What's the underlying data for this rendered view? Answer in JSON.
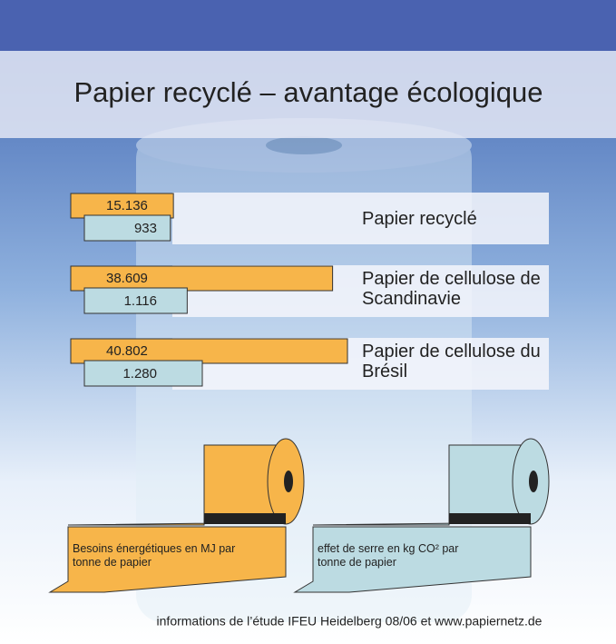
{
  "chart_data": {
    "type": "bar",
    "title": "Papier recyclé – avantage écologique",
    "categories": [
      "Papier recyclé",
      "Papier de cellulose de Scandinavie",
      "Papier de cellulose du Brésil"
    ],
    "series": [
      {
        "name": "Besoins énergétiques en MJ par tonne de papier",
        "color": "#f7b54a",
        "values": [
          15136,
          38609,
          40802
        ],
        "value_labels": [
          "15.136",
          "38.609",
          "40.802"
        ]
      },
      {
        "name": "effet de serre en kg CO² par tonne de papier",
        "color": "#bcdbe2",
        "values": [
          933,
          1116,
          1280
        ],
        "value_labels": [
          "933",
          "1.116",
          "1.280"
        ]
      }
    ],
    "source": "informations de l’étude IFEU Heidelberg 08/06 et www.papiernetz.de"
  }
}
